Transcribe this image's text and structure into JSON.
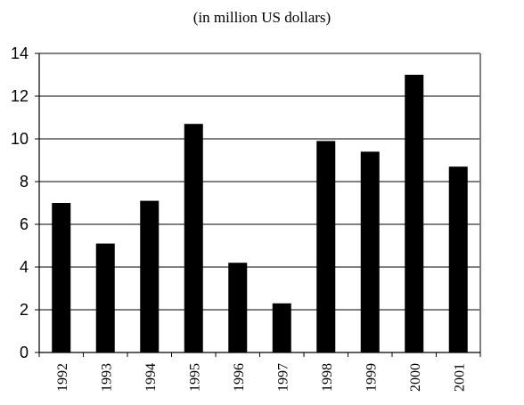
{
  "chart_data": {
    "type": "bar",
    "subtitle": "(in million US dollars)",
    "categories": [
      "1992",
      "1993",
      "1994",
      "1995",
      "1996",
      "1997",
      "1998",
      "1999",
      "2000",
      "2001"
    ],
    "values": [
      7.0,
      5.1,
      7.1,
      10.7,
      4.2,
      2.3,
      9.9,
      9.4,
      13.0,
      8.7
    ],
    "yticks": [
      "0",
      "2",
      "4",
      "6",
      "8",
      "10",
      "12",
      "14"
    ],
    "ylim": [
      0,
      14
    ],
    "grid": true,
    "bar_color": "#000000",
    "axis_color": "#808080",
    "grid_color": "#000000"
  }
}
